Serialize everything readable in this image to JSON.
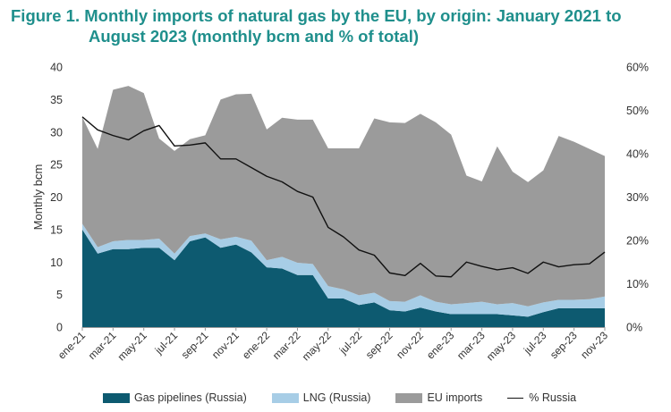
{
  "title": {
    "line1": "Figure 1. Monthly imports of natural gas by the EU, by origin: January 2021 to",
    "line2": "August 2023 (monthly bcm and % of total)"
  },
  "chart_data": {
    "type": "area",
    "title": "Figure 1. Monthly imports of natural gas by the EU, by origin: January 2021 to August 2023 (monthly bcm and % of total)",
    "ylabel": "Monthly bcm",
    "ylim": [
      0,
      40
    ],
    "y_ticks": [
      0,
      5,
      10,
      15,
      20,
      25,
      30,
      35,
      40
    ],
    "y2lim": [
      0,
      60
    ],
    "y2_ticks": [
      "0%",
      "10%",
      "20%",
      "30%",
      "40%",
      "50%",
      "60%"
    ],
    "x": [
      "ene-21",
      "feb-21",
      "mar-21",
      "abr-21",
      "may-21",
      "jun-21",
      "jul-21",
      "ago-21",
      "sep-21",
      "oct-21",
      "nov-21",
      "dic-21",
      "ene-22",
      "feb-22",
      "mar-22",
      "abr-22",
      "may-22",
      "jun-22",
      "jul-22",
      "ago-22",
      "sep-22",
      "oct-22",
      "nov-22",
      "dic-22",
      "ene-23",
      "feb-23",
      "mar-23",
      "abr-23",
      "may-23",
      "jun-23",
      "jul-23",
      "ago-23",
      "sep-23",
      "oct-23",
      "nov-23"
    ],
    "x_tick_labels": [
      "ene-21",
      "mar-21",
      "may-21",
      "jul-21",
      "sep-21",
      "nov-21",
      "ene-22",
      "mar-22",
      "may-22",
      "jul-22",
      "sep-22",
      "nov-22",
      "ene-23",
      "mar-23",
      "may-23",
      "jul-23",
      "sep-23",
      "nov-23"
    ],
    "stacked": true,
    "series": [
      {
        "name": "Gas pipelines (Russia)",
        "axis": "left",
        "color": "#0d5a70",
        "values": [
          15.0,
          11.3,
          12.0,
          12.0,
          12.2,
          12.2,
          10.3,
          13.2,
          13.8,
          12.2,
          12.7,
          11.5,
          9.2,
          9.0,
          8.0,
          8.0,
          4.4,
          4.4,
          3.4,
          3.8,
          2.6,
          2.4,
          3.0,
          2.4,
          2.0,
          2.0,
          2.0,
          2.0,
          1.8,
          1.6,
          2.3,
          2.9,
          2.9,
          2.9,
          2.9
        ]
      },
      {
        "name": "LNG (Russia)",
        "axis": "left",
        "color": "#a7cde6",
        "values": [
          0.9,
          1.0,
          1.2,
          1.4,
          1.2,
          1.4,
          1.0,
          0.8,
          0.6,
          1.3,
          1.2,
          1.8,
          1.1,
          1.8,
          1.9,
          1.7,
          1.9,
          1.4,
          1.5,
          1.5,
          1.4,
          1.5,
          1.9,
          1.5,
          1.5,
          1.7,
          1.9,
          1.5,
          1.9,
          1.6,
          1.5,
          1.3,
          1.3,
          1.4,
          1.8
        ]
      },
      {
        "name": "EU imports",
        "axis": "left",
        "color": "#9b9b9b",
        "values": [
          16.4,
          15.1,
          23.3,
          23.7,
          22.6,
          15.4,
          15.8,
          14.9,
          15.1,
          21.5,
          21.9,
          22.6,
          20.1,
          21.4,
          22.0,
          22.2,
          21.2,
          21.7,
          22.6,
          26.8,
          27.5,
          27.5,
          27.9,
          27.6,
          26.1,
          19.6,
          18.5,
          24.3,
          20.2,
          19.1,
          20.3,
          25.2,
          24.3,
          23.1,
          21.6
        ]
      },
      {
        "name": "% Russia",
        "axis": "right",
        "type": "line",
        "color": "#111111",
        "values": [
          48.5,
          45.5,
          44.2,
          43.2,
          45.3,
          46.5,
          41.8,
          42.0,
          42.5,
          38.8,
          38.8,
          36.8,
          34.8,
          33.5,
          31.3,
          30.0,
          23.0,
          20.8,
          17.8,
          16.6,
          12.5,
          11.9,
          14.7,
          11.8,
          11.6,
          15.0,
          14.0,
          13.2,
          13.7,
          12.4,
          15.0,
          13.9,
          14.4,
          14.6,
          17.3
        ]
      }
    ],
    "legend_placement": "bottom",
    "grid": false
  },
  "legend": [
    {
      "label": "Gas pipelines (Russia)",
      "color": "#0d5a70",
      "kind": "area"
    },
    {
      "label": "LNG (Russia)",
      "color": "#a7cde6",
      "kind": "area"
    },
    {
      "label": "EU imports",
      "color": "#9b9b9b",
      "kind": "area"
    },
    {
      "label": "% Russia",
      "color": "#111111",
      "kind": "line"
    }
  ]
}
